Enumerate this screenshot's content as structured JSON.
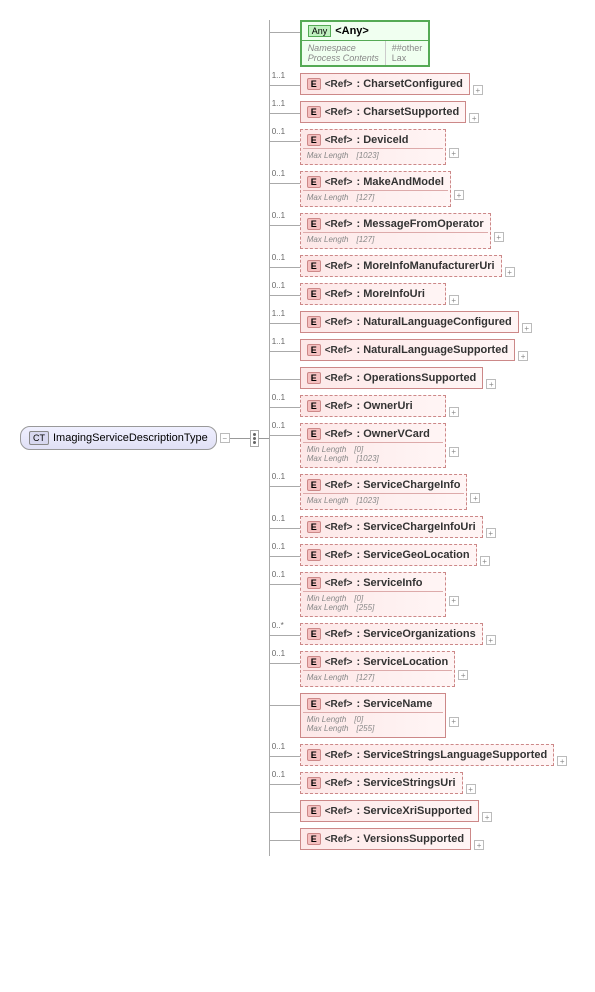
{
  "root": {
    "badge": "CT",
    "label": "ImagingServiceDescriptionType"
  },
  "any": {
    "badge": "Any",
    "title": "<Any>",
    "ns_label": "Namespace",
    "ns_value": "##other",
    "pc_label": "Process Contents",
    "pc_value": "Lax"
  },
  "children": [
    {
      "card": "1..1",
      "dashed": false,
      "ref": "<Ref>",
      "name": ": CharsetConfigured",
      "constraints": []
    },
    {
      "card": "1..1",
      "dashed": false,
      "ref": "<Ref>",
      "name": ": CharsetSupported",
      "constraints": []
    },
    {
      "card": "0..1",
      "dashed": true,
      "ref": "<Ref>",
      "name": ": DeviceId",
      "constraints": [
        {
          "label": "Max Length",
          "value": "[1023]"
        }
      ]
    },
    {
      "card": "0..1",
      "dashed": true,
      "ref": "<Ref>",
      "name": ": MakeAndModel",
      "constraints": [
        {
          "label": "Max Length",
          "value": "[127]"
        }
      ]
    },
    {
      "card": "0..1",
      "dashed": true,
      "ref": "<Ref>",
      "name": ": MessageFromOperator",
      "constraints": [
        {
          "label": "Max Length",
          "value": "[127]"
        }
      ]
    },
    {
      "card": "0..1",
      "dashed": true,
      "ref": "<Ref>",
      "name": ": MoreInfoManufacturerUri",
      "constraints": []
    },
    {
      "card": "0..1",
      "dashed": true,
      "ref": "<Ref>",
      "name": ": MoreInfoUri",
      "constraints": []
    },
    {
      "card": "1..1",
      "dashed": false,
      "ref": "<Ref>",
      "name": ": NaturalLanguageConfigured",
      "constraints": []
    },
    {
      "card": "1..1",
      "dashed": false,
      "ref": "<Ref>",
      "name": ": NaturalLanguageSupported",
      "constraints": []
    },
    {
      "card": "",
      "dashed": false,
      "ref": "<Ref>",
      "name": ": OperationsSupported",
      "constraints": []
    },
    {
      "card": "0..1",
      "dashed": true,
      "ref": "<Ref>",
      "name": ": OwnerUri",
      "constraints": []
    },
    {
      "card": "0..1",
      "dashed": true,
      "ref": "<Ref>",
      "name": ": OwnerVCard",
      "constraints": [
        {
          "label": "Min Length",
          "value": "[0]"
        },
        {
          "label": "Max Length",
          "value": "[1023]"
        }
      ]
    },
    {
      "card": "0..1",
      "dashed": true,
      "ref": "<Ref>",
      "name": ": ServiceChargeInfo",
      "constraints": [
        {
          "label": "Max Length",
          "value": "[1023]"
        }
      ]
    },
    {
      "card": "0..1",
      "dashed": true,
      "ref": "<Ref>",
      "name": ": ServiceChargeInfoUri",
      "constraints": []
    },
    {
      "card": "0..1",
      "dashed": true,
      "ref": "<Ref>",
      "name": ": ServiceGeoLocation",
      "constraints": []
    },
    {
      "card": "0..1",
      "dashed": true,
      "ref": "<Ref>",
      "name": ": ServiceInfo",
      "constraints": [
        {
          "label": "Min Length",
          "value": "[0]"
        },
        {
          "label": "Max Length",
          "value": "[255]"
        }
      ]
    },
    {
      "card": "0..*",
      "dashed": true,
      "ref": "<Ref>",
      "name": ": ServiceOrganizations",
      "constraints": []
    },
    {
      "card": "0..1",
      "dashed": true,
      "ref": "<Ref>",
      "name": ": ServiceLocation",
      "constraints": [
        {
          "label": "Max Length",
          "value": "[127]"
        }
      ]
    },
    {
      "card": "",
      "dashed": false,
      "ref": "<Ref>",
      "name": ": ServiceName",
      "constraints": [
        {
          "label": "Min Length",
          "value": "[0]"
        },
        {
          "label": "Max Length",
          "value": "[255]"
        }
      ]
    },
    {
      "card": "0..1",
      "dashed": true,
      "ref": "<Ref>",
      "name": ": ServiceStringsLanguageSupported",
      "constraints": []
    },
    {
      "card": "0..1",
      "dashed": true,
      "ref": "<Ref>",
      "name": ": ServiceStringsUri",
      "constraints": []
    },
    {
      "card": "",
      "dashed": false,
      "ref": "<Ref>",
      "name": ": ServiceXriSupported",
      "constraints": []
    },
    {
      "card": "",
      "dashed": false,
      "ref": "<Ref>",
      "name": ": VersionsSupported",
      "constraints": []
    }
  ],
  "colors": {
    "root_bg": "#e0e0f5",
    "element_border": "#c88",
    "element_bg": "#fde8e8",
    "any_border": "#5a5"
  }
}
